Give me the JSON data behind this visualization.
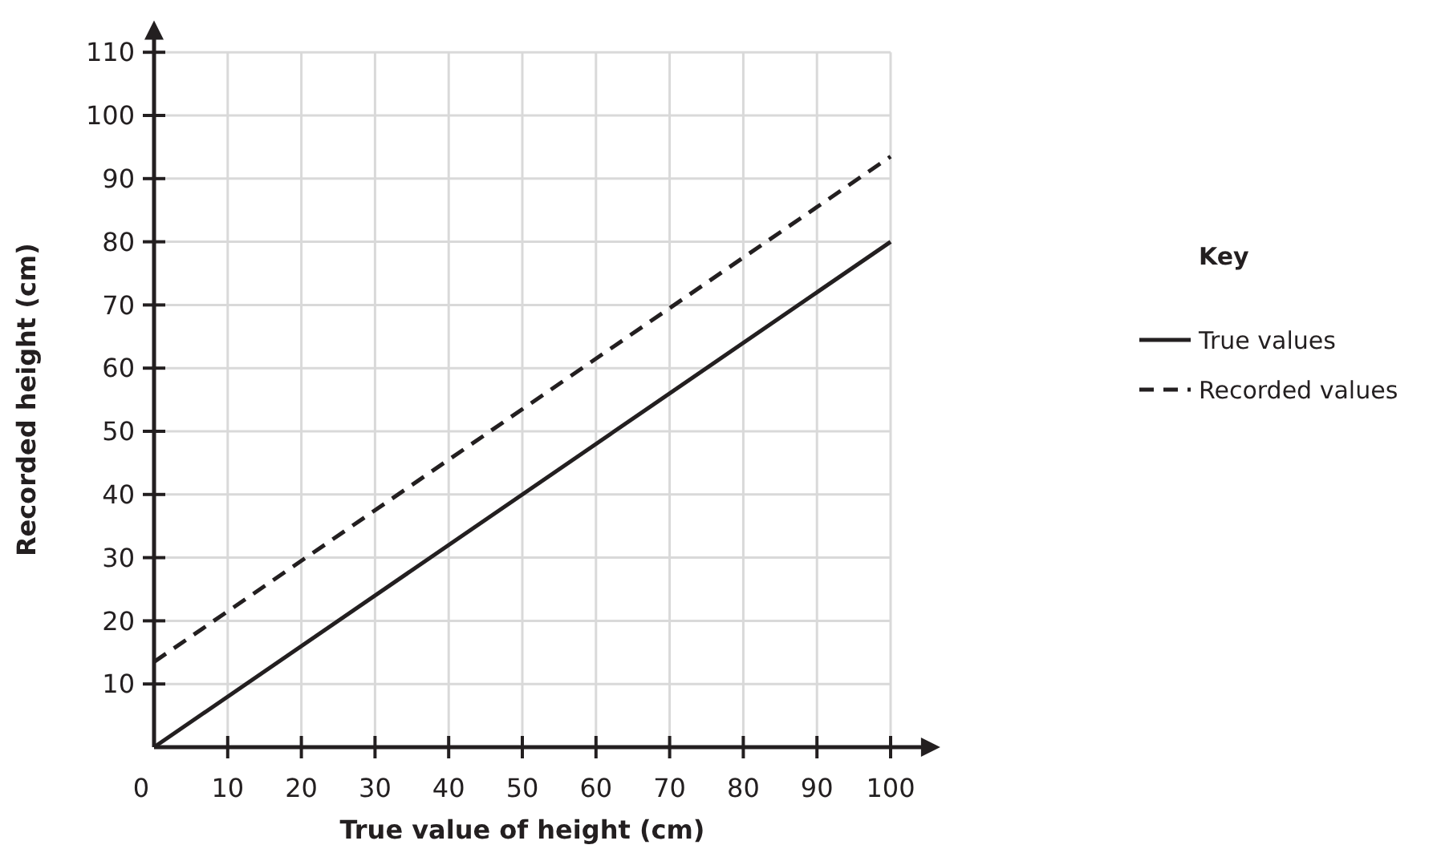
{
  "chart_data": {
    "type": "line",
    "xlabel": "True value of height (cm)",
    "ylabel": "Recorded height (cm)",
    "legend_title": "Key",
    "legend": "right",
    "grid": true,
    "xlim": [
      0,
      105
    ],
    "ylim": [
      0,
      113
    ],
    "xticks": [
      0,
      10,
      20,
      30,
      40,
      50,
      60,
      70,
      80,
      90,
      100
    ],
    "yticks": [
      10,
      20,
      30,
      40,
      50,
      60,
      70,
      80,
      90,
      100,
      110
    ],
    "x": [
      0,
      100
    ],
    "series": [
      {
        "name": "True values",
        "color": "#231f20",
        "values": [
          0,
          80
        ],
        "line_style": "solid"
      },
      {
        "name": "Recorded values",
        "color": "#231f20",
        "values": [
          13.5,
          93.5
        ],
        "line_style": "dashed"
      }
    ]
  }
}
